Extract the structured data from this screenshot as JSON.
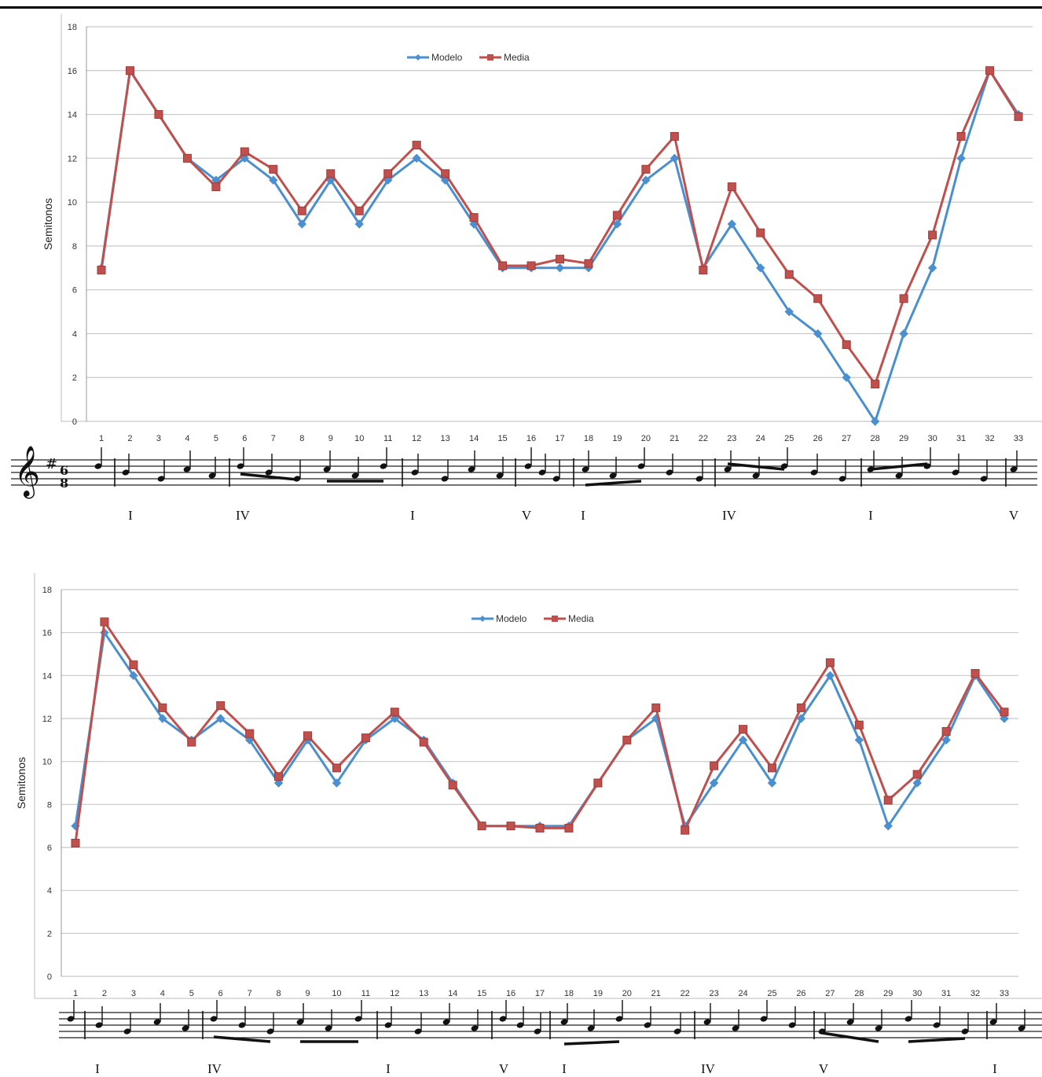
{
  "colors": {
    "modelo": "#4a90d0",
    "media": "#c0504d",
    "grid": "#c8c8c8",
    "ink": "#000000"
  },
  "chart_data": [
    {
      "type": "line",
      "ylabel": "Semitonos",
      "ylim": [
        0,
        18
      ],
      "yticks": [
        0,
        2,
        4,
        6,
        8,
        10,
        12,
        14,
        16,
        18
      ],
      "x": [
        1,
        2,
        3,
        4,
        5,
        6,
        7,
        8,
        9,
        10,
        11,
        12,
        13,
        14,
        15,
        16,
        17,
        18,
        19,
        20,
        21,
        22,
        23,
        24,
        25,
        26,
        27,
        28,
        29,
        30,
        31,
        32,
        33
      ],
      "legend_position": "top-center",
      "grid": true,
      "series": [
        {
          "name": "Modelo",
          "values": [
            7,
            16,
            14,
            12,
            11,
            12,
            11,
            9,
            11,
            9,
            11,
            12,
            11,
            9,
            7,
            7,
            7,
            7,
            9,
            11,
            12,
            7,
            9,
            7,
            5,
            4,
            2,
            0,
            4,
            7,
            12,
            16,
            14
          ]
        },
        {
          "name": "Media",
          "values": [
            6.9,
            16,
            14,
            12,
            10.7,
            12.3,
            11.5,
            9.6,
            11.3,
            9.6,
            11.3,
            12.6,
            11.3,
            9.3,
            7.1,
            7.1,
            7.4,
            7.2,
            9.4,
            11.5,
            13,
            6.9,
            10.7,
            8.6,
            6.7,
            5.6,
            3.5,
            1.7,
            5.6,
            8.5,
            13,
            16,
            13.9
          ]
        }
      ],
      "harmony": [
        "I",
        "IV",
        "I",
        "V",
        "I",
        "IV",
        "I",
        "V"
      ]
    },
    {
      "type": "line",
      "ylabel": "Semitonos",
      "ylim": [
        0,
        18
      ],
      "yticks": [
        0,
        2,
        4,
        6,
        8,
        10,
        12,
        14,
        16,
        18
      ],
      "x": [
        1,
        2,
        3,
        4,
        5,
        6,
        7,
        8,
        9,
        10,
        11,
        12,
        13,
        14,
        15,
        16,
        17,
        18,
        19,
        20,
        21,
        22,
        23,
        24,
        25,
        26,
        27,
        28,
        29,
        30,
        31,
        32,
        33
      ],
      "legend_position": "top-center",
      "grid": true,
      "series": [
        {
          "name": "Modelo",
          "values": [
            7,
            16,
            14,
            12,
            11,
            12,
            11,
            9,
            11,
            9,
            11,
            12,
            11,
            9,
            7,
            7,
            7,
            7,
            9,
            11,
            12,
            7,
            9,
            11,
            9,
            12,
            14,
            11,
            7,
            9,
            11,
            14,
            12
          ]
        },
        {
          "name": "Media",
          "values": [
            6.2,
            16.5,
            14.5,
            12.5,
            10.9,
            12.6,
            11.3,
            9.3,
            11.2,
            9.7,
            11.1,
            12.3,
            10.9,
            8.9,
            7,
            7,
            6.9,
            6.9,
            9,
            11,
            12.5,
            6.8,
            9.8,
            11.5,
            9.7,
            12.5,
            14.6,
            11.7,
            8.2,
            9.4,
            11.4,
            14.1,
            12.3
          ]
        }
      ],
      "harmony": [
        "I",
        "IV",
        "I",
        "V",
        "I",
        "IV",
        "V",
        "I"
      ]
    }
  ]
}
